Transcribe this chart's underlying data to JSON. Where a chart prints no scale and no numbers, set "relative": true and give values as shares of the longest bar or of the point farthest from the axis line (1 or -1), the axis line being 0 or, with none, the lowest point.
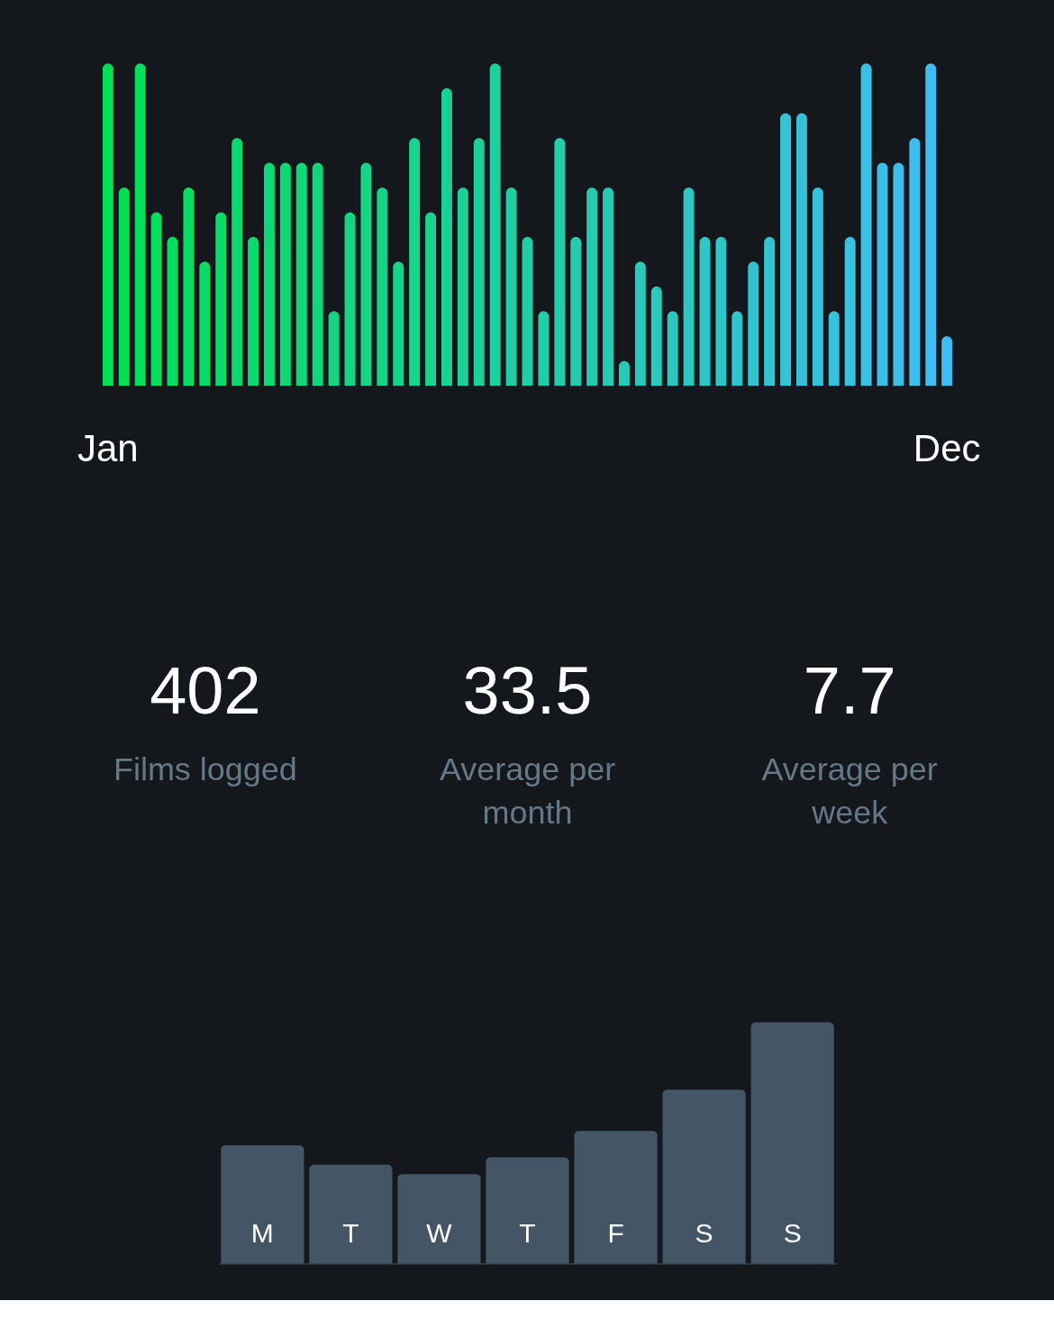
{
  "chart_data": [
    {
      "type": "bar",
      "relative": true,
      "categories": [
        "Jan",
        null,
        null,
        null,
        null,
        null,
        null,
        null,
        null,
        null,
        null,
        null,
        null,
        null,
        null,
        null,
        null,
        null,
        null,
        null,
        null,
        null,
        null,
        null,
        null,
        null,
        null,
        null,
        null,
        null,
        null,
        null,
        null,
        null,
        null,
        null,
        null,
        null,
        null,
        null,
        null,
        null,
        null,
        null,
        null,
        null,
        null,
        null,
        null,
        null,
        null,
        null,
        "Dec"
      ],
      "values": [
        1,
        0.615,
        1,
        0.538,
        0.462,
        0.615,
        0.385,
        0.538,
        0.769,
        0.462,
        0.692,
        0.692,
        0.692,
        0.692,
        0.231,
        0.538,
        0.692,
        0.615,
        0.385,
        0.769,
        0.538,
        0.923,
        0.615,
        0.769,
        1,
        0.615,
        0.462,
        0.231,
        0.769,
        0.462,
        0.615,
        0.615,
        0.077,
        0.385,
        0.308,
        0.231,
        0.615,
        0.462,
        0.462,
        0.231,
        0.385,
        0.462,
        0.846,
        0.846,
        0.615,
        0.231,
        0.462,
        1,
        0.692,
        0.692,
        0.769,
        1,
        0.154
      ],
      "colors": [
        "#00e054",
        "#01df57",
        "#02df5a",
        "#04de5d",
        "#05dd60",
        "#06dd63",
        "#07dc66",
        "#09db6a",
        "#0ada6d",
        "#0bda70",
        "#0cd973",
        "#0ed876",
        "#0fd879",
        "#10d77c",
        "#11d67f",
        "#12d682",
        "#14d585",
        "#15d488",
        "#16d48b",
        "#17d38e",
        "#19d292",
        "#1ad195",
        "#1bd198",
        "#1cd09b",
        "#1ecf9e",
        "#1fcfa1",
        "#20cea4",
        "#21cda7",
        "#22cdaa",
        "#24ccad",
        "#25cbb0",
        "#26cbb3",
        "#27cab6",
        "#29c9ba",
        "#2ac8bd",
        "#2bc8c0",
        "#2cc7c3",
        "#2ec6c6",
        "#2fc6c9",
        "#30c5cc",
        "#31c4cf",
        "#32c4d2",
        "#34c3d5",
        "#35c2d8",
        "#36c2db",
        "#37c1de",
        "#39c0e2",
        "#3abfe5",
        "#3bbfe8",
        "#3cbeeb",
        "#3ebdee",
        "#3fbdf1",
        "#40bcf4"
      ]
    },
    {
      "type": "other",
      "annotations": [
        "402",
        "Films logged",
        "33.5",
        "Average per month",
        "7.7",
        "Average per week"
      ]
    },
    {
      "type": "bar",
      "relative": true,
      "categories": [
        "M",
        "T",
        "W",
        "T",
        "F",
        "S",
        "S"
      ],
      "values": [
        0.49,
        0.41,
        0.37,
        0.44,
        0.55,
        0.72,
        1
      ],
      "color": "#445566"
    }
  ]
}
